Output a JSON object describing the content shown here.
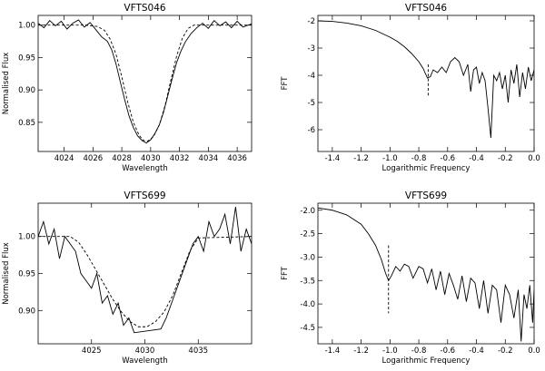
{
  "chart_data": [
    {
      "id": "p1",
      "type": "line",
      "title": "VFTS046",
      "xlabel": "Wavelength",
      "ylabel": "Normalised Flux",
      "xlim": [
        4022.2,
        4037
      ],
      "ylim": [
        0.805,
        1.015
      ],
      "xticks": [
        4024,
        4026,
        4028,
        4030,
        4032,
        4034,
        4036
      ],
      "xtick_labels": [
        "4024",
        "4026",
        "4028",
        "4030",
        "4032",
        "4034",
        "4036"
      ],
      "yticks": [
        0.85,
        0.9,
        0.95,
        1.0
      ],
      "ytick_labels": [
        "0.85",
        "0.90",
        "0.95",
        "1.00"
      ],
      "series": [
        {
          "style": "solid",
          "x": [
            4022.2,
            4022.6,
            4023.0,
            4023.4,
            4023.8,
            4024.2,
            4024.6,
            4025.0,
            4025.4,
            4025.8,
            4026.2,
            4026.6,
            4027.0,
            4027.3,
            4027.6,
            4027.9,
            4028.2,
            4028.5,
            4028.8,
            4029.1,
            4029.4,
            4029.7,
            4030.0,
            4030.3,
            4030.6,
            4030.9,
            4031.2,
            4031.5,
            4031.8,
            4032.1,
            4032.4,
            4032.8,
            4033.2,
            4033.6,
            4034.0,
            4034.4,
            4034.8,
            4035.2,
            4035.6,
            4036.0,
            4036.4,
            4037.0
          ],
          "y": [
            1.003,
            0.996,
            1.007,
            0.999,
            1.006,
            0.994,
            1.003,
            1.008,
            0.997,
            1.004,
            0.993,
            0.982,
            0.975,
            0.962,
            0.94,
            0.912,
            0.885,
            0.86,
            0.842,
            0.829,
            0.822,
            0.818,
            0.823,
            0.833,
            0.846,
            0.866,
            0.892,
            0.918,
            0.942,
            0.96,
            0.974,
            0.987,
            0.996,
            1.003,
            0.995,
            1.007,
            0.999,
            1.005,
            0.996,
            1.006,
            0.997,
            1.002
          ]
        },
        {
          "style": "dashed",
          "x": [
            4022.2,
            4025.5,
            4026.3,
            4026.8,
            4027.2,
            4027.6,
            4028.0,
            4028.4,
            4028.8,
            4029.2,
            4029.5,
            4029.8,
            4030.2,
            4030.6,
            4031.0,
            4031.4,
            4031.8,
            4032.2,
            4032.6,
            4033.0,
            4037.0
          ],
          "y": [
            1.0,
            1.0,
            0.998,
            0.992,
            0.978,
            0.955,
            0.92,
            0.882,
            0.85,
            0.83,
            0.822,
            0.821,
            0.828,
            0.846,
            0.876,
            0.915,
            0.952,
            0.98,
            0.995,
            1.0,
            1.0
          ]
        }
      ]
    },
    {
      "id": "p2",
      "type": "line",
      "title": "VFTS046",
      "xlabel": "Logarithmic Frequency",
      "ylabel": "FFT",
      "xlim": [
        -1.5,
        0.0
      ],
      "ylim": [
        -6.8,
        -1.8
      ],
      "xticks": [
        -1.4,
        -1.2,
        -1.0,
        -0.8,
        -0.6,
        -0.4,
        -0.2,
        0.0
      ],
      "xtick_labels": [
        "-1.4",
        "-1.2",
        "-1.0",
        "-0.8",
        "-0.6",
        "-0.4",
        "-0.2",
        "0.0"
      ],
      "yticks": [
        -6,
        -5,
        -4,
        -3,
        -2
      ],
      "ytick_labels": [
        "-6",
        "-5",
        "-4",
        "-3",
        "-2"
      ],
      "series": [
        {
          "style": "solid",
          "x": [
            -1.5,
            -1.4,
            -1.3,
            -1.2,
            -1.1,
            -1.0,
            -0.95,
            -0.9,
            -0.85,
            -0.8,
            -0.77,
            -0.74,
            -0.72,
            -0.7,
            -0.67,
            -0.64,
            -0.61,
            -0.58,
            -0.55,
            -0.52,
            -0.49,
            -0.46,
            -0.44,
            -0.42,
            -0.4,
            -0.38,
            -0.36,
            -0.34,
            -0.32,
            -0.3,
            -0.28,
            -0.26,
            -0.24,
            -0.22,
            -0.2,
            -0.18,
            -0.16,
            -0.14,
            -0.12,
            -0.1,
            -0.08,
            -0.06,
            -0.04,
            -0.02,
            0.0
          ],
          "y": [
            -2.0,
            -2.02,
            -2.08,
            -2.18,
            -2.35,
            -2.6,
            -2.75,
            -2.95,
            -3.2,
            -3.5,
            -3.75,
            -4.1,
            -4.05,
            -3.8,
            -3.9,
            -3.7,
            -3.9,
            -3.5,
            -3.35,
            -3.5,
            -4.0,
            -3.6,
            -4.6,
            -3.8,
            -3.7,
            -4.3,
            -3.9,
            -4.2,
            -5.2,
            -6.3,
            -4.0,
            -4.2,
            -3.9,
            -4.5,
            -4.0,
            -5.0,
            -3.8,
            -4.3,
            -3.6,
            -4.8,
            -3.9,
            -4.5,
            -3.7,
            -4.2,
            -3.8
          ]
        },
        {
          "style": "dashed",
          "x": [
            -0.735,
            -0.735
          ],
          "y": [
            -3.6,
            -4.8
          ]
        }
      ]
    },
    {
      "id": "p3",
      "type": "line",
      "title": "VFTS699",
      "xlabel": "Wavelength",
      "ylabel": "Normalised Flux",
      "xlim": [
        4020,
        4040
      ],
      "ylim": [
        0.855,
        1.045
      ],
      "xticks": [
        4025,
        4030,
        4035
      ],
      "xtick_labels": [
        "4025",
        "4030",
        "4035"
      ],
      "yticks": [
        0.9,
        0.95,
        1.0
      ],
      "ytick_labels": [
        "0.90",
        "0.95",
        "1.00"
      ],
      "series": [
        {
          "style": "solid",
          "x": [
            4020.0,
            4020.5,
            4021.0,
            4021.5,
            4022.0,
            4022.5,
            4023.0,
            4023.5,
            4024.0,
            4024.5,
            4025.0,
            4025.5,
            4026.0,
            4026.5,
            4027.0,
            4027.5,
            4028.0,
            4028.5,
            4029.0,
            4031.5,
            4032.0,
            4032.5,
            4033.0,
            4033.5,
            4034.0,
            4034.5,
            4035.0,
            4035.5,
            4036.0,
            4036.5,
            4037.0,
            4037.5,
            4038.0,
            4038.5,
            4039.0,
            4039.5,
            4040.0
          ],
          "y": [
            1.0,
            1.02,
            0.99,
            1.01,
            0.97,
            1.0,
            0.99,
            0.98,
            0.95,
            0.94,
            0.93,
            0.95,
            0.91,
            0.92,
            0.895,
            0.91,
            0.88,
            0.89,
            0.87,
            0.875,
            0.89,
            0.91,
            0.93,
            0.95,
            0.97,
            0.99,
            1.0,
            0.98,
            1.02,
            1.0,
            1.01,
            1.03,
            0.99,
            1.04,
            0.98,
            1.01,
            0.99
          ]
        },
        {
          "style": "dashed",
          "x": [
            4020.0,
            4023.0,
            4023.8,
            4024.6,
            4025.4,
            4026.2,
            4027.0,
            4027.8,
            4028.6,
            4029.4,
            4030.2,
            4031.0,
            4031.8,
            4032.6,
            4033.4,
            4034.2,
            4035.0,
            4040.0
          ],
          "y": [
            1.0,
            1.0,
            0.992,
            0.975,
            0.955,
            0.935,
            0.915,
            0.898,
            0.885,
            0.878,
            0.878,
            0.885,
            0.898,
            0.92,
            0.95,
            0.98,
            0.998,
            1.0
          ]
        }
      ]
    },
    {
      "id": "p4",
      "type": "line",
      "title": "VFTS699",
      "xlabel": "Logarithmic Frequency",
      "ylabel": "FFT",
      "xlim": [
        -1.5,
        0.0
      ],
      "ylim": [
        -4.85,
        -1.85
      ],
      "xticks": [
        -1.4,
        -1.2,
        -1.0,
        -0.8,
        -0.6,
        -0.4,
        -0.2,
        0.0
      ],
      "xtick_labels": [
        "-1.4",
        "-1.2",
        "-1.0",
        "-0.8",
        "-0.6",
        "-0.4",
        "-0.2",
        "0.0"
      ],
      "yticks": [
        -4.5,
        -4.0,
        -3.5,
        -3.0,
        -2.5,
        -2.0
      ],
      "ytick_labels": [
        "-4.5",
        "-4.0",
        "-3.5",
        "-3.0",
        "-2.5",
        "-2.0"
      ],
      "series": [
        {
          "style": "solid",
          "x": [
            -1.5,
            -1.4,
            -1.3,
            -1.2,
            -1.15,
            -1.1,
            -1.06,
            -1.03,
            -1.01,
            -0.99,
            -0.96,
            -0.93,
            -0.9,
            -0.87,
            -0.84,
            -0.8,
            -0.77,
            -0.74,
            -0.71,
            -0.68,
            -0.65,
            -0.62,
            -0.59,
            -0.56,
            -0.53,
            -0.5,
            -0.47,
            -0.44,
            -0.41,
            -0.38,
            -0.35,
            -0.32,
            -0.29,
            -0.26,
            -0.23,
            -0.2,
            -0.17,
            -0.14,
            -0.11,
            -0.09,
            -0.07,
            -0.05,
            -0.03,
            -0.01,
            0.0
          ],
          "y": [
            -1.95,
            -2.0,
            -2.1,
            -2.3,
            -2.5,
            -2.75,
            -3.05,
            -3.35,
            -3.5,
            -3.4,
            -3.2,
            -3.3,
            -3.15,
            -3.2,
            -3.45,
            -3.2,
            -3.25,
            -3.55,
            -3.25,
            -3.7,
            -3.3,
            -3.8,
            -3.35,
            -3.6,
            -3.9,
            -3.4,
            -3.95,
            -3.45,
            -3.55,
            -4.1,
            -3.5,
            -4.2,
            -3.6,
            -3.7,
            -4.4,
            -3.6,
            -3.8,
            -4.3,
            -3.7,
            -4.8,
            -3.8,
            -4.1,
            -3.6,
            -4.4,
            -3.7
          ]
        },
        {
          "style": "dashed",
          "x": [
            -1.01,
            -1.01
          ],
          "y": [
            -2.75,
            -4.2
          ]
        }
      ]
    }
  ]
}
